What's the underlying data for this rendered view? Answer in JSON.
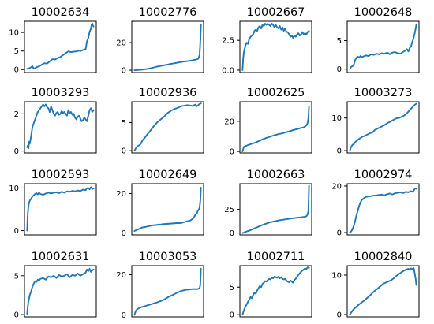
{
  "chart_data": [
    {
      "type": "line",
      "title": "10002634",
      "yticks": [
        0,
        5,
        10
      ],
      "ylim": [
        -0.8,
        13.0
      ],
      "color": "#1f77b4",
      "x": [
        0,
        4,
        8,
        10,
        14,
        18,
        22,
        26,
        30,
        34,
        38,
        42,
        46,
        50,
        54,
        58,
        62,
        66,
        70,
        74,
        78,
        80,
        82,
        84,
        86,
        88,
        90,
        92,
        94,
        96,
        97,
        98,
        99,
        100
      ],
      "y": [
        0.2,
        0.4,
        0.9,
        0.2,
        0.6,
        0.9,
        1.3,
        1.7,
        1.6,
        2.2,
        2.8,
        2.7,
        3.1,
        3.4,
        3.9,
        4.4,
        4.9,
        4.7,
        4.8,
        4.9,
        5.1,
        5.0,
        5.1,
        5.3,
        5.4,
        5.5,
        7.6,
        8.5,
        10.2,
        11.0,
        12.2,
        12.4,
        11.8,
        11.6
      ]
    },
    {
      "type": "line",
      "title": "10002776",
      "yticks": [
        0,
        20
      ],
      "ylim": [
        -1.7,
        35.5
      ],
      "color": "#1f77b4",
      "x": [
        0,
        5,
        10,
        15,
        20,
        25,
        30,
        35,
        40,
        45,
        50,
        55,
        60,
        65,
        70,
        75,
        80,
        85,
        88,
        90,
        92,
        94,
        96,
        97,
        98,
        99,
        100
      ],
      "y": [
        0.0,
        0.1,
        0.3,
        0.6,
        1.0,
        1.5,
        2.1,
        2.7,
        3.1,
        3.6,
        4.1,
        4.6,
        5.0,
        5.5,
        5.9,
        6.3,
        6.6,
        7.0,
        7.2,
        7.5,
        7.6,
        7.9,
        8.3,
        9.5,
        11.0,
        20.0,
        33.0
      ]
    },
    {
      "type": "line",
      "title": "10002667",
      "yticks": [
        0.0,
        2.5
      ],
      "ylim": [
        -0.2,
        4.1
      ],
      "color": "#1f77b4",
      "x": [
        0,
        1,
        2,
        4,
        6,
        8,
        10,
        12,
        14,
        16,
        18,
        20,
        22,
        24,
        26,
        28,
        30,
        32,
        34,
        36,
        38,
        40,
        42,
        44,
        46,
        48,
        50,
        52,
        54,
        56,
        58,
        60,
        62,
        64,
        66,
        68,
        70,
        72,
        74,
        76,
        78,
        80,
        82,
        84,
        86,
        88,
        90,
        92,
        94,
        96,
        98,
        100
      ],
      "y": [
        0.0,
        1.0,
        1.5,
        2.0,
        2.3,
        2.2,
        2.6,
        2.8,
        2.9,
        3.0,
        3.3,
        3.4,
        3.3,
        3.6,
        3.7,
        3.5,
        3.8,
        3.7,
        3.9,
        3.8,
        3.9,
        3.8,
        3.7,
        3.9,
        3.8,
        3.6,
        3.8,
        3.6,
        3.5,
        3.7,
        3.4,
        3.6,
        3.3,
        3.5,
        3.2,
        3.2,
        3.0,
        2.8,
        2.9,
        2.7,
        2.9,
        2.8,
        3.0,
        3.1,
        2.9,
        3.0,
        3.2,
        3.0,
        3.1,
        3.0,
        3.2,
        3.3
      ]
    },
    {
      "type": "line",
      "title": "10002648",
      "yticks": [
        0,
        5
      ],
      "ylim": [
        -0.6,
        8.4
      ],
      "color": "#1f77b4",
      "x": [
        0,
        2,
        4,
        6,
        8,
        10,
        12,
        14,
        16,
        18,
        20,
        24,
        28,
        32,
        36,
        40,
        44,
        48,
        52,
        56,
        60,
        64,
        68,
        72,
        76,
        80,
        84,
        86,
        88,
        90,
        92,
        94,
        96,
        98,
        100
      ],
      "y": [
        0.0,
        0.4,
        0.5,
        0.8,
        1.6,
        2.0,
        2.2,
        2.0,
        2.3,
        2.1,
        2.2,
        2.4,
        2.3,
        2.6,
        2.5,
        2.7,
        2.6,
        2.8,
        2.7,
        2.9,
        2.6,
        2.9,
        3.0,
        2.8,
        2.7,
        3.0,
        3.3,
        3.5,
        3.1,
        3.7,
        4.0,
        4.8,
        5.5,
        6.5,
        7.8
      ]
    },
    {
      "type": "line",
      "title": "10003293",
      "yticks": [
        0,
        2
      ],
      "ylim": [
        -0.1,
        2.65
      ],
      "color": "#1f77b4",
      "x": [
        0,
        1,
        2,
        3,
        4,
        6,
        8,
        10,
        12,
        14,
        16,
        18,
        20,
        22,
        24,
        26,
        28,
        30,
        32,
        34,
        36,
        38,
        40,
        42,
        44,
        46,
        48,
        50,
        52,
        54,
        56,
        58,
        60,
        62,
        64,
        66,
        68,
        70,
        72,
        74,
        76,
        78,
        80,
        82,
        84,
        86,
        88,
        90,
        92,
        94,
        96,
        98,
        100
      ],
      "y": [
        0.2,
        0.3,
        0.15,
        0.5,
        0.4,
        0.8,
        1.3,
        1.5,
        1.7,
        1.9,
        2.1,
        2.2,
        2.3,
        2.4,
        2.5,
        2.4,
        2.5,
        2.35,
        2.3,
        2.1,
        2.4,
        2.2,
        2.0,
        1.9,
        2.05,
        2.1,
        1.95,
        2.0,
        2.15,
        2.05,
        2.1,
        2.0,
        1.9,
        2.2,
        2.05,
        2.1,
        1.95,
        2.0,
        1.8,
        1.7,
        1.85,
        1.9,
        1.75,
        1.6,
        1.65,
        1.8,
        1.7,
        1.6,
        1.9,
        2.2,
        2.3,
        2.1,
        2.2
      ]
    },
    {
      "type": "line",
      "title": "10002936",
      "yticks": [
        0,
        5
      ],
      "ylim": [
        -0.4,
        8.7
      ],
      "color": "#1f77b4",
      "x": [
        0,
        3,
        6,
        8,
        10,
        12,
        15,
        20,
        25,
        30,
        35,
        40,
        45,
        50,
        55,
        60,
        65,
        70,
        75,
        80,
        85,
        88,
        90,
        92,
        94,
        96,
        98,
        100
      ],
      "y": [
        0.0,
        0.6,
        0.9,
        1.0,
        1.3,
        1.8,
        2.2,
        3.0,
        3.7,
        4.5,
        5.1,
        5.6,
        6.1,
        6.7,
        7.1,
        7.4,
        7.6,
        7.9,
        8.0,
        8.1,
        8.0,
        7.9,
        8.1,
        8.2,
        7.9,
        8.1,
        8.3,
        8.4
      ]
    },
    {
      "type": "line",
      "title": "10002625",
      "yticks": [
        0,
        20
      ],
      "ylim": [
        -1.0,
        33.0
      ],
      "color": "#1f77b4",
      "x": [
        0,
        2,
        4,
        6,
        8,
        10,
        15,
        20,
        25,
        30,
        35,
        40,
        45,
        50,
        55,
        60,
        65,
        70,
        75,
        80,
        85,
        88,
        90,
        92,
        94,
        96,
        97,
        98,
        99,
        100
      ],
      "y": [
        0.0,
        3.0,
        3.5,
        3.8,
        4.2,
        4.5,
        5.2,
        6.0,
        7.0,
        8.0,
        8.8,
        9.6,
        10.3,
        11.0,
        11.6,
        12.0,
        12.7,
        13.3,
        14.0,
        14.6,
        15.2,
        15.6,
        15.8,
        16.0,
        16.5,
        17.2,
        18.0,
        19.0,
        22.0,
        30.0
      ]
    },
    {
      "type": "line",
      "title": "10003273",
      "yticks": [
        0,
        10
      ],
      "ylim": [
        -0.7,
        15.0
      ],
      "color": "#1f77b4",
      "x": [
        0,
        2,
        4,
        6,
        8,
        10,
        14,
        18,
        22,
        26,
        30,
        34,
        38,
        42,
        46,
        50,
        54,
        58,
        62,
        66,
        70,
        74,
        78,
        82,
        86,
        90,
        94,
        96,
        98,
        100
      ],
      "y": [
        0.0,
        1.2,
        1.8,
        2.0,
        2.6,
        3.0,
        3.6,
        4.2,
        4.5,
        4.9,
        5.3,
        5.6,
        6.4,
        6.8,
        7.2,
        7.6,
        8.1,
        8.6,
        9.0,
        9.5,
        9.9,
        10.0,
        10.4,
        10.8,
        11.5,
        12.4,
        13.3,
        13.8,
        14.1,
        14.4
      ]
    },
    {
      "type": "line",
      "title": "10002593",
      "yticks": [
        0,
        10
      ],
      "ylim": [
        -1.0,
        11.0
      ],
      "color": "#1f77b4",
      "x": [
        0,
        1,
        2,
        3,
        4,
        6,
        8,
        10,
        12,
        14,
        16,
        18,
        20,
        24,
        28,
        32,
        36,
        40,
        44,
        48,
        52,
        56,
        60,
        64,
        68,
        72,
        76,
        80,
        84,
        88,
        90,
        92,
        94,
        96,
        98,
        100
      ],
      "y": [
        0.0,
        4.0,
        5.8,
        6.6,
        7.0,
        7.5,
        8.0,
        8.3,
        8.6,
        8.8,
        8.5,
        8.9,
        8.6,
        8.4,
        8.7,
        8.9,
        8.7,
        8.9,
        9.0,
        8.8,
        9.1,
        8.9,
        9.2,
        9.1,
        9.3,
        9.2,
        9.4,
        9.3,
        9.6,
        9.5,
        9.9,
        10.0,
        9.7,
        10.2,
        9.8,
        9.9
      ]
    },
    {
      "type": "line",
      "title": "10002649",
      "yticks": [
        0,
        20
      ],
      "ylim": [
        -1.0,
        25.0
      ],
      "color": "#1f77b4",
      "x": [
        0,
        4,
        8,
        12,
        16,
        20,
        24,
        28,
        32,
        36,
        40,
        44,
        48,
        52,
        56,
        60,
        64,
        68,
        72,
        76,
        80,
        84,
        86,
        88,
        90,
        92,
        94,
        95,
        96,
        97,
        98,
        99,
        100
      ],
      "y": [
        1.0,
        1.6,
        2.2,
        2.8,
        3.0,
        3.3,
        3.6,
        3.9,
        4.0,
        4.2,
        4.3,
        4.5,
        4.6,
        4.7,
        4.8,
        4.9,
        5.0,
        5.0,
        5.2,
        5.6,
        6.0,
        6.3,
        6.8,
        7.2,
        8.2,
        9.5,
        10.0,
        11.0,
        11.5,
        12.0,
        13.0,
        16.0,
        23.0
      ]
    },
    {
      "type": "line",
      "title": "10002663",
      "yticks": [
        0,
        25
      ],
      "ylim": [
        -2.0,
        52.0
      ],
      "color": "#1f77b4",
      "x": [
        0,
        3,
        6,
        10,
        15,
        20,
        25,
        30,
        35,
        40,
        45,
        50,
        55,
        60,
        65,
        70,
        75,
        80,
        85,
        88,
        90,
        92,
        94,
        96,
        97,
        98,
        99,
        100
      ],
      "y": [
        0.0,
        0.8,
        1.6,
        2.5,
        4.0,
        5.5,
        7.0,
        8.5,
        9.8,
        11.0,
        11.9,
        12.6,
        13.3,
        13.9,
        14.5,
        15.0,
        15.5,
        15.9,
        16.3,
        16.5,
        16.8,
        17.0,
        17.3,
        17.6,
        18.5,
        20.0,
        23.0,
        50.0
      ]
    },
    {
      "type": "line",
      "title": "10002974",
      "yticks": [
        0,
        20
      ],
      "ylim": [
        -1.0,
        21.0
      ],
      "color": "#1f77b4",
      "x": [
        0,
        2,
        4,
        6,
        8,
        10,
        12,
        14,
        16,
        18,
        20,
        22,
        24,
        28,
        32,
        36,
        40,
        44,
        48,
        52,
        56,
        60,
        64,
        68,
        72,
        76,
        80,
        84,
        88,
        92,
        94,
        96,
        98,
        100
      ],
      "y": [
        0.0,
        0.5,
        1.5,
        3.0,
        5.0,
        7.5,
        9.5,
        11.5,
        13.0,
        14.0,
        14.5,
        15.0,
        15.3,
        15.5,
        15.7,
        15.9,
        16.0,
        16.2,
        16.3,
        16.0,
        16.5,
        16.8,
        16.4,
        16.9,
        17.1,
        17.3,
        17.0,
        17.5,
        17.3,
        17.8,
        17.5,
        18.0,
        19.0,
        18.8
      ]
    },
    {
      "type": "line",
      "title": "10002631",
      "yticks": [
        0,
        5
      ],
      "ylim": [
        -0.3,
        6.3
      ],
      "color": "#1f77b4",
      "x": [
        0,
        1,
        2,
        3,
        4,
        6,
        8,
        10,
        12,
        14,
        16,
        18,
        20,
        24,
        28,
        32,
        36,
        40,
        44,
        48,
        52,
        56,
        60,
        64,
        68,
        72,
        76,
        80,
        84,
        88,
        90,
        92,
        94,
        96,
        98,
        100
      ],
      "y": [
        0.1,
        1.0,
        1.7,
        2.1,
        2.5,
        3.0,
        3.6,
        4.0,
        4.3,
        4.2,
        4.5,
        4.4,
        4.6,
        4.7,
        4.5,
        4.9,
        4.8,
        5.0,
        4.7,
        5.1,
        4.9,
        5.0,
        5.2,
        4.8,
        5.1,
        5.0,
        5.3,
        5.0,
        5.2,
        5.4,
        5.8,
        5.6,
        5.9,
        5.5,
        5.7,
        5.8
      ]
    },
    {
      "type": "line",
      "title": "10003053",
      "yticks": [
        0,
        20
      ],
      "ylim": [
        -1.0,
        24.5
      ],
      "color": "#1f77b4",
      "x": [
        0,
        2,
        4,
        6,
        8,
        10,
        14,
        18,
        22,
        26,
        30,
        34,
        38,
        42,
        46,
        50,
        54,
        58,
        62,
        66,
        70,
        74,
        78,
        82,
        86,
        90,
        94,
        96,
        98,
        99,
        100
      ],
      "y": [
        0.0,
        2.0,
        2.8,
        3.2,
        3.5,
        3.8,
        4.2,
        4.6,
        5.0,
        5.4,
        5.8,
        6.2,
        6.7,
        7.2,
        7.9,
        8.7,
        9.4,
        10.0,
        10.7,
        11.3,
        11.9,
        12.2,
        12.5,
        12.6,
        12.8,
        12.9,
        12.8,
        13.0,
        13.2,
        15.0,
        23.0
      ]
    },
    {
      "type": "line",
      "title": "10002711",
      "yticks": [
        0,
        5
      ],
      "ylim": [
        -0.4,
        8.9
      ],
      "color": "#1f77b4",
      "x": [
        0,
        2,
        4,
        6,
        8,
        10,
        12,
        14,
        16,
        18,
        20,
        22,
        24,
        26,
        28,
        30,
        32,
        34,
        36,
        38,
        40,
        42,
        44,
        46,
        48,
        50,
        52,
        54,
        56,
        58,
        60,
        62,
        64,
        66,
        68,
        70,
        72,
        74,
        76,
        78,
        80,
        82,
        84,
        86,
        88,
        90,
        92,
        94,
        96,
        98,
        100
      ],
      "y": [
        0.0,
        0.8,
        1.4,
        1.8,
        2.3,
        2.7,
        3.2,
        3.0,
        3.6,
        4.0,
        3.8,
        4.4,
        4.8,
        5.2,
        5.0,
        5.6,
        5.8,
        6.1,
        6.0,
        6.3,
        6.5,
        6.4,
        6.7,
        6.6,
        6.9,
        6.8,
        6.7,
        6.9,
        6.6,
        6.8,
        6.5,
        6.4,
        6.5,
        6.2,
        6.0,
        5.9,
        6.2,
        6.0,
        5.8,
        6.3,
        6.5,
        6.9,
        7.2,
        7.5,
        7.8,
        8.0,
        8.2,
        8.4,
        8.3,
        8.6,
        8.5
      ]
    },
    {
      "type": "line",
      "title": "10002840",
      "yticks": [
        0,
        10
      ],
      "ylim": [
        -0.6,
        12.4
      ],
      "color": "#1f77b4",
      "x": [
        0,
        2,
        4,
        6,
        8,
        10,
        14,
        18,
        22,
        26,
        30,
        34,
        38,
        42,
        46,
        50,
        54,
        58,
        62,
        66,
        70,
        74,
        78,
        82,
        86,
        88,
        90,
        92,
        94,
        96,
        97,
        98,
        99,
        100
      ],
      "y": [
        0.0,
        0.5,
        1.0,
        1.4,
        1.7,
        2.0,
        2.6,
        3.1,
        3.6,
        4.2,
        4.8,
        5.5,
        6.1,
        6.6,
        7.2,
        7.8,
        8.1,
        8.4,
        8.7,
        9.2,
        9.8,
        10.3,
        10.8,
        11.2,
        11.5,
        11.6,
        11.4,
        11.7,
        11.5,
        11.8,
        11.0,
        10.0,
        9.0,
        7.5
      ]
    }
  ]
}
